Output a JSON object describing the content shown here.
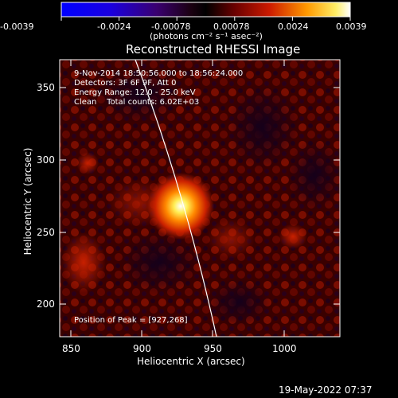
{
  "colorbar": {
    "tick_labels": [
      "-0.0039",
      "-0.0024",
      "-0.00078",
      "0.00078",
      "0.0024",
      "0.0039"
    ],
    "units": "(photons cm⁻² s⁻¹ asec⁻²)"
  },
  "image": {
    "title": "Reconstructed RHESSI Image",
    "annotations": {
      "line1": "9-Nov-2014 18:50:56.000 to 18:56:24.000",
      "line2": "Detectors: 3F 6F 9F, Att 0",
      "line3": "Energy Range: 12.0 - 25.0 keV",
      "line4": "Clean    Total counts: 6.02E+03",
      "peak": "Position of Peak = [927,268]"
    },
    "x_axis": {
      "label": "Heliocentric X (arcsec)",
      "ticks": [
        "850",
        "900",
        "950",
        "1000"
      ]
    },
    "y_axis": {
      "label": "Heliocentric Y (arcsec)",
      "ticks": [
        "350",
        "300",
        "250",
        "200"
      ]
    }
  },
  "footer": {
    "timestamp": "19-May-2022 07:37"
  }
}
